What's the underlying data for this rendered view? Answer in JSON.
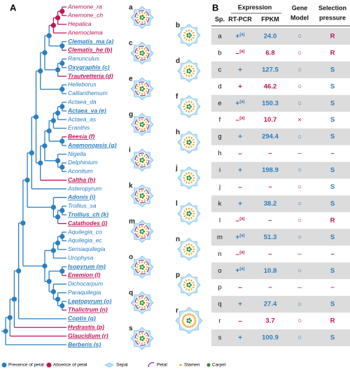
{
  "panels": {
    "a": "A",
    "b": "B"
  },
  "taxa": [
    {
      "name": "Anemone_ra",
      "petal": false,
      "highlight": false
    },
    {
      "name": "Anemone_ch",
      "petal": false,
      "highlight": false
    },
    {
      "name": "Hepatica",
      "petal": false,
      "highlight": false
    },
    {
      "name": "Anemoclema",
      "petal": false,
      "highlight": false
    },
    {
      "name": "Clematis_ma (a)",
      "petal": true,
      "highlight": true
    },
    {
      "name": "Clematis_he (b)",
      "petal": false,
      "highlight": true
    },
    {
      "name": "Ranunculus",
      "petal": true,
      "highlight": false
    },
    {
      "name": "Oxygraphis (c)",
      "petal": true,
      "highlight": true
    },
    {
      "name": "Trautvetteria (d)",
      "petal": false,
      "highlight": true
    },
    {
      "name": "Helleborus",
      "petal": true,
      "highlight": false
    },
    {
      "name": "Callianthemum",
      "petal": true,
      "highlight": false
    },
    {
      "name": "Actaea_da",
      "petal": true,
      "highlight": false
    },
    {
      "name": "Actaea_va (e)",
      "petal": true,
      "highlight": true
    },
    {
      "name": "Actaea_as",
      "petal": true,
      "highlight": false
    },
    {
      "name": "Eranthis",
      "petal": true,
      "highlight": false
    },
    {
      "name": "Beesia (f)",
      "petal": false,
      "highlight": true
    },
    {
      "name": "Anemonopsis (g)",
      "petal": true,
      "highlight": true
    },
    {
      "name": "Nigella",
      "petal": true,
      "highlight": false
    },
    {
      "name": "Delphinium",
      "petal": true,
      "highlight": false
    },
    {
      "name": "Aconitum",
      "petal": true,
      "highlight": false
    },
    {
      "name": "Caltha (h)",
      "petal": false,
      "highlight": true
    },
    {
      "name": "Asteropyrum",
      "petal": true,
      "highlight": false
    },
    {
      "name": "Adonis (i)",
      "petal": true,
      "highlight": true
    },
    {
      "name": "Trollius_sa",
      "petal": true,
      "highlight": false
    },
    {
      "name": "Trollius_ch (k)",
      "petal": true,
      "highlight": true
    },
    {
      "name": "Calathodes (j)",
      "petal": false,
      "highlight": true
    },
    {
      "name": "Aquilegia_co",
      "petal": true,
      "highlight": false
    },
    {
      "name": "Aquilegia_ec",
      "petal": true,
      "highlight": false
    },
    {
      "name": "Semiaquilegia",
      "petal": true,
      "highlight": false
    },
    {
      "name": "Urophysa",
      "petal": true,
      "highlight": false
    },
    {
      "name": "Isopyrum (m)",
      "petal": true,
      "highlight": true
    },
    {
      "name": "Enemion (l)",
      "petal": false,
      "highlight": true
    },
    {
      "name": "Dichocarpum",
      "petal": true,
      "highlight": false
    },
    {
      "name": "Paraquilegia",
      "petal": true,
      "highlight": false
    },
    {
      "name": "Leptopyrum (o)",
      "petal": true,
      "highlight": true
    },
    {
      "name": "Thalictrum (n)",
      "petal": false,
      "highlight": true
    },
    {
      "name": "Coptis (q)",
      "petal": true,
      "highlight": true
    },
    {
      "name": "Hydrastis (p)",
      "petal": false,
      "highlight": true
    },
    {
      "name": "Glaucidium (r)",
      "petal": false,
      "highlight": true
    },
    {
      "name": "Berberis (s)",
      "petal": true,
      "highlight": true
    }
  ],
  "diagrams": [
    {
      "label": "a",
      "petal": true
    },
    {
      "label": "b",
      "petal": false
    },
    {
      "label": "c",
      "petal": true
    },
    {
      "label": "d",
      "petal": false
    },
    {
      "label": "e",
      "petal": true
    },
    {
      "label": "f",
      "petal": false
    },
    {
      "label": "g",
      "petal": true
    },
    {
      "label": "h",
      "petal": false
    },
    {
      "label": "i",
      "petal": true
    },
    {
      "label": "j",
      "petal": false
    },
    {
      "label": "k",
      "petal": true
    },
    {
      "label": "l",
      "petal": false
    },
    {
      "label": "m",
      "petal": true
    },
    {
      "label": "n",
      "petal": false
    },
    {
      "label": "o",
      "petal": true
    },
    {
      "label": "p",
      "petal": false
    },
    {
      "label": "q",
      "petal": true
    },
    {
      "label": "r",
      "petal": false
    },
    {
      "label": "s",
      "petal": true
    }
  ],
  "legend": [
    "Presence of petal",
    "Absence of petal",
    "Sepal",
    "Petal",
    "Stamen",
    "Carpel"
  ],
  "table": {
    "headers": {
      "sp": "Sp.",
      "expression": "Expression",
      "rtpcr": "RT-PCR",
      "fpkm": "FPKM",
      "model": [
        "Gene",
        "Model"
      ],
      "selection": [
        "Selection",
        "pressure"
      ]
    },
    "rows": [
      {
        "sp": "a",
        "rtpcr": "+",
        "note": "(a)",
        "fpkm": "24.0",
        "model": "○",
        "selection": "R",
        "petal": true
      },
      {
        "sp": "b",
        "rtpcr": "–",
        "note": "(a)",
        "fpkm": "6.8",
        "model": "○",
        "selection": "R",
        "petal": false
      },
      {
        "sp": "c",
        "rtpcr": "+",
        "note": "",
        "fpkm": "127.5",
        "model": "○",
        "selection": "S",
        "petal": true
      },
      {
        "sp": "d",
        "rtpcr": "+",
        "note": "",
        "fpkm": "46.2",
        "model": "○",
        "selection": "S",
        "petal": false
      },
      {
        "sp": "e",
        "rtpcr": "+",
        "note": "(a)",
        "fpkm": "150.3",
        "model": "○",
        "selection": "S",
        "petal": true
      },
      {
        "sp": "f",
        "rtpcr": "–",
        "note": "(a)",
        "fpkm": "10.7",
        "model": "×",
        "selection": "S",
        "petal": false
      },
      {
        "sp": "g",
        "rtpcr": "+",
        "note": "",
        "fpkm": "294.4",
        "model": "○",
        "selection": "S",
        "petal": true
      },
      {
        "sp": "h",
        "rtpcr": "–",
        "note": "",
        "fpkm": "–",
        "model": "–",
        "selection": "–",
        "petal": false
      },
      {
        "sp": "i",
        "rtpcr": "+",
        "note": "",
        "fpkm": "198.9",
        "model": "○",
        "selection": "S",
        "petal": true
      },
      {
        "sp": "j",
        "rtpcr": "–",
        "note": "",
        "fpkm": "–",
        "model": "○",
        "selection": "S",
        "petal": false
      },
      {
        "sp": "k",
        "rtpcr": "+",
        "note": "",
        "fpkm": "38.2",
        "model": "○",
        "selection": "S",
        "petal": true
      },
      {
        "sp": "l",
        "rtpcr": "–",
        "note": "(a)",
        "fpkm": "–",
        "model": "○",
        "selection": "R",
        "petal": false
      },
      {
        "sp": "m",
        "rtpcr": "+",
        "note": "(a)",
        "fpkm": "51.3",
        "model": "○",
        "selection": "S",
        "petal": true
      },
      {
        "sp": "n",
        "rtpcr": "–",
        "note": "(a)",
        "fpkm": "–",
        "model": "–",
        "selection": "–",
        "petal": false
      },
      {
        "sp": "o",
        "rtpcr": "+",
        "note": "(a)",
        "fpkm": "10.8",
        "model": "○",
        "selection": "S",
        "petal": true
      },
      {
        "sp": "p",
        "rtpcr": "–",
        "note": "",
        "fpkm": "–",
        "model": "–",
        "selection": "–",
        "petal": false
      },
      {
        "sp": "q",
        "rtpcr": "+",
        "note": "",
        "fpkm": "27.4",
        "model": "○",
        "selection": "S",
        "petal": true
      },
      {
        "sp": "r",
        "rtpcr": "–",
        "note": "",
        "fpkm": "3.7",
        "model": "○",
        "selection": "R",
        "petal": false
      },
      {
        "sp": "s",
        "rtpcr": "+",
        "note": "",
        "fpkm": "100.9",
        "model": "○",
        "selection": "S",
        "petal": true
      }
    ]
  }
}
